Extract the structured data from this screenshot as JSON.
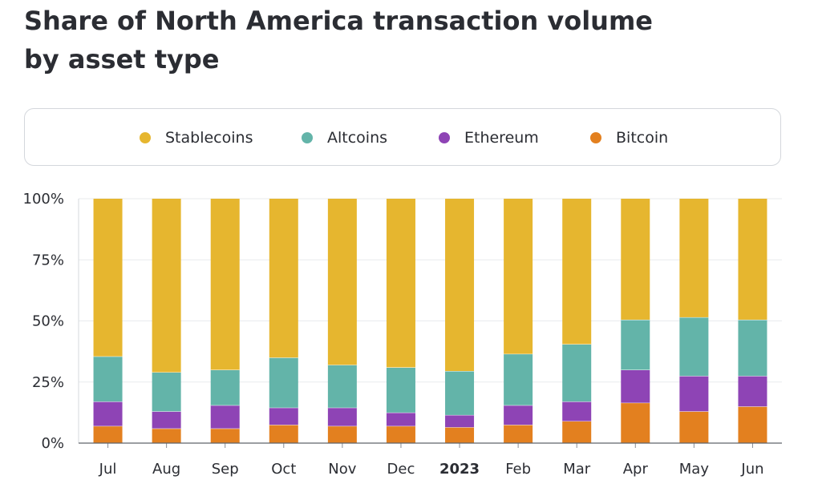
{
  "title": "Share of North America transaction volume by asset type",
  "chart_data": {
    "type": "bar",
    "stacked": true,
    "title": "Share of North America transaction volume by asset type",
    "categories": [
      "Jul",
      "Aug",
      "Sep",
      "Oct",
      "Nov",
      "Dec",
      "2023",
      "Feb",
      "Mar",
      "Apr",
      "May",
      "Jun"
    ],
    "bold_categories": [
      "2023"
    ],
    "yticks": [
      "0%",
      "25%",
      "50%",
      "75%",
      "100%"
    ],
    "ylim": [
      0,
      100
    ],
    "legend_position": "top",
    "series": [
      {
        "name": "Bitcoin",
        "color": "#e3801f",
        "values": [
          7,
          6,
          6,
          7.5,
          7,
          7,
          6.5,
          7.5,
          9,
          16.5,
          13,
          15
        ]
      },
      {
        "name": "Ethereum",
        "color": "#8e44b5",
        "values": [
          10,
          7,
          9.5,
          7,
          7.5,
          5.5,
          5,
          8,
          8,
          13.5,
          14.5,
          12.5
        ]
      },
      {
        "name": "Altcoins",
        "color": "#63b4a9",
        "values": [
          18.5,
          16,
          14.5,
          20.5,
          17.5,
          18.5,
          18,
          21,
          23.5,
          20.5,
          24,
          23
        ]
      },
      {
        "name": "Stablecoins",
        "color": "#e6b62f",
        "values": [
          64.5,
          71,
          70,
          65,
          68,
          69,
          70.5,
          63.5,
          59.5,
          49.5,
          48.5,
          49.5
        ]
      }
    ],
    "legend_order": [
      "Stablecoins",
      "Altcoins",
      "Ethereum",
      "Bitcoin"
    ],
    "grid": true
  }
}
